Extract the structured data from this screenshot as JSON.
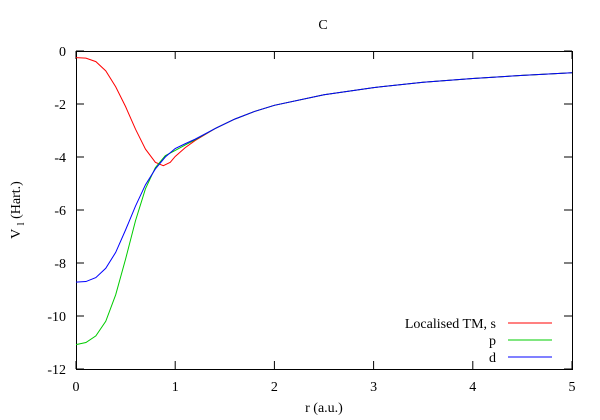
{
  "chart_data": {
    "type": "line",
    "title": "C",
    "xlabel": "r (a.u.)",
    "ylabel": {
      "main": "V",
      "sub": "l",
      "suffix": " (Hart.)"
    },
    "xlim": [
      0,
      5
    ],
    "ylim": [
      -12,
      0
    ],
    "xticks": [
      0,
      1,
      2,
      3,
      4,
      5
    ],
    "yticks": [
      0,
      -2,
      -4,
      -6,
      -8,
      -10,
      -12
    ],
    "xtick_labels": [
      "0",
      "1",
      "2",
      "3",
      "4",
      "5"
    ],
    "ytick_labels": [
      "0",
      "-2",
      "-4",
      "-6",
      "-8",
      "-10",
      "-12"
    ],
    "grid": false,
    "legend_position": "bottom-right",
    "series": [
      {
        "name": "Localised TM, s",
        "color": "#ff0000",
        "x": [
          0,
          0.1,
          0.2,
          0.3,
          0.4,
          0.5,
          0.6,
          0.7,
          0.8,
          0.88,
          0.95,
          1.0,
          1.1,
          1.2,
          1.4,
          1.6,
          1.8,
          2.0,
          2.5,
          3.0,
          3.5,
          4.0,
          4.5,
          5.0
        ],
        "y": [
          -0.25,
          -0.27,
          -0.4,
          -0.75,
          -1.35,
          -2.1,
          -2.95,
          -3.7,
          -4.2,
          -4.33,
          -4.2,
          -3.98,
          -3.65,
          -3.38,
          -2.93,
          -2.57,
          -2.28,
          -2.05,
          -1.65,
          -1.38,
          -1.18,
          -1.04,
          -0.92,
          -0.82
        ]
      },
      {
        "name": "p",
        "color": "#00cc00",
        "x": [
          0,
          0.1,
          0.2,
          0.3,
          0.4,
          0.5,
          0.6,
          0.7,
          0.8,
          0.9,
          1.0,
          1.1,
          1.2,
          1.4,
          1.6,
          1.8,
          2.0,
          2.5,
          3.0,
          3.5,
          4.0,
          4.5,
          5.0
        ],
        "y": [
          -11.08,
          -11.0,
          -10.75,
          -10.2,
          -9.2,
          -7.85,
          -6.4,
          -5.2,
          -4.4,
          -3.95,
          -3.75,
          -3.55,
          -3.35,
          -2.93,
          -2.57,
          -2.28,
          -2.05,
          -1.65,
          -1.38,
          -1.18,
          -1.04,
          -0.92,
          -0.82
        ]
      },
      {
        "name": "d",
        "color": "#0000ff",
        "x": [
          0,
          0.1,
          0.2,
          0.3,
          0.4,
          0.5,
          0.6,
          0.7,
          0.8,
          0.9,
          1.0,
          1.1,
          1.2,
          1.4,
          1.6,
          1.8,
          2.0,
          2.5,
          3.0,
          3.5,
          4.0,
          4.5,
          5.0
        ],
        "y": [
          -8.72,
          -8.7,
          -8.55,
          -8.2,
          -7.6,
          -6.75,
          -5.85,
          -5.05,
          -4.45,
          -4.0,
          -3.68,
          -3.5,
          -3.33,
          -2.93,
          -2.57,
          -2.28,
          -2.05,
          -1.65,
          -1.38,
          -1.18,
          -1.04,
          -0.92,
          -0.82
        ]
      }
    ]
  }
}
